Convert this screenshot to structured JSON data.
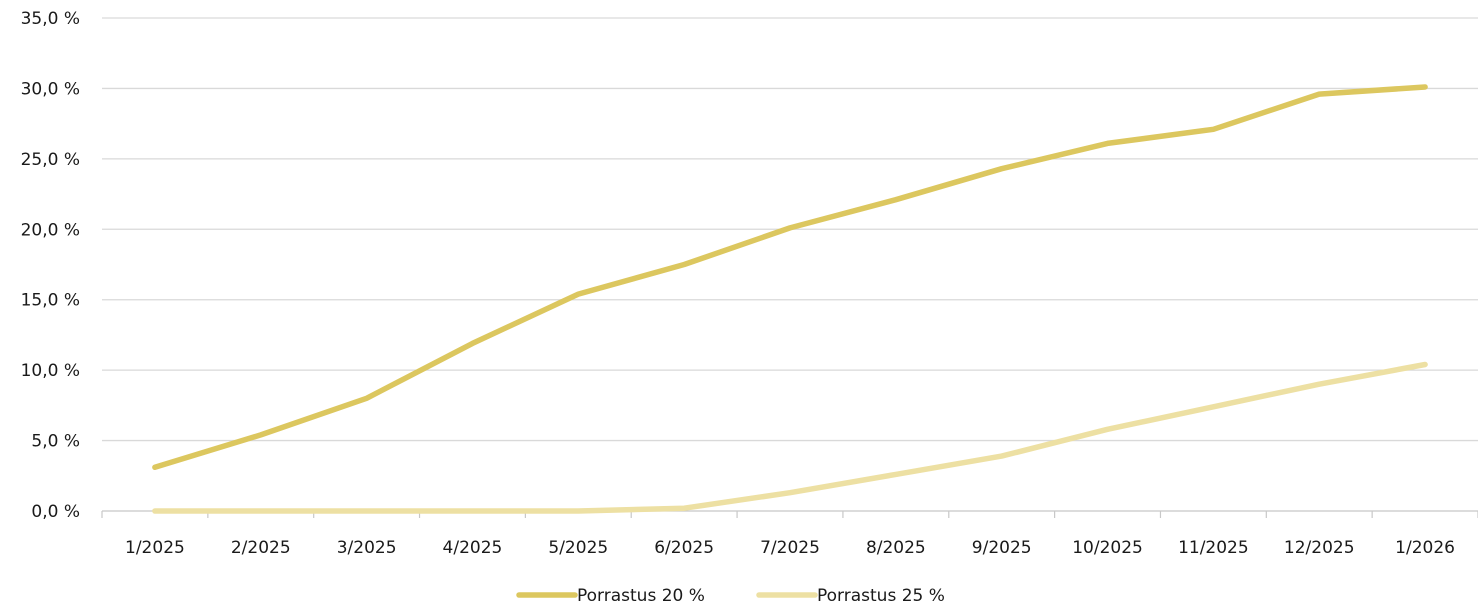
{
  "chart_data": {
    "type": "line",
    "categories": [
      "1/2025",
      "2/2025",
      "3/2025",
      "4/2025",
      "5/2025",
      "6/2025",
      "7/2025",
      "8/2025",
      "9/2025",
      "10/2025",
      "11/2025",
      "12/2025",
      "1/2026"
    ],
    "y_ticks": [
      "0,0 %",
      "5,0 %",
      "10,0 %",
      "15,0 %",
      "20,0 %",
      "25,0 %",
      "30,0 %",
      "35,0 %"
    ],
    "ylim": [
      0,
      35
    ],
    "grid": true,
    "legend_position": "bottom",
    "series": [
      {
        "name": "Porrastus 20 %",
        "color": "#dcc75f",
        "values": [
          3.1,
          5.4,
          8.0,
          11.9,
          15.4,
          17.5,
          20.1,
          22.1,
          24.3,
          26.1,
          27.1,
          29.6,
          30.1
        ]
      },
      {
        "name": "Porrastus 25 %",
        "color": "#ede0a3",
        "values": [
          0.0,
          0.0,
          0.0,
          0.0,
          0.0,
          0.2,
          1.3,
          2.6,
          3.9,
          5.8,
          7.4,
          9.0,
          10.4
        ]
      }
    ]
  }
}
